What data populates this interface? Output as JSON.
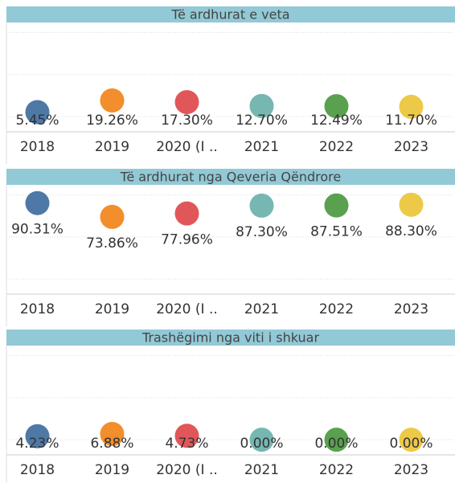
{
  "chart_data": [
    {
      "type": "dot",
      "title": "Të ardhurat e veta",
      "categories": [
        "2018",
        "2019",
        "2020 (I ..",
        "2021",
        "2022",
        "2023"
      ],
      "values": [
        5.45,
        19.26,
        17.3,
        12.7,
        12.49,
        11.7
      ],
      "value_labels": [
        "5.45%",
        "19.26%",
        "17.30%",
        "12.70%",
        "12.49%",
        "11.70%"
      ],
      "colors": [
        "#4e79a7",
        "#f28e2b",
        "#e15759",
        "#76b7b2",
        "#59a14f",
        "#edc948"
      ],
      "ylim": [
        -18,
        112
      ],
      "yticks": [
        0,
        50,
        100
      ],
      "grid": true
    },
    {
      "type": "dot",
      "title": "Të ardhurat nga Qeveria Qëndrore",
      "categories": [
        "2018",
        "2019",
        "2020 (I ..",
        "2021",
        "2022",
        "2023"
      ],
      "values": [
        90.31,
        73.86,
        77.96,
        87.3,
        87.51,
        88.3
      ],
      "value_labels": [
        "90.31%",
        "73.86%",
        "77.96%",
        "87.30%",
        "87.51%",
        "88.30%"
      ],
      "colors": [
        "#4e79a7",
        "#f28e2b",
        "#e15759",
        "#76b7b2",
        "#59a14f",
        "#edc948"
      ],
      "ylim": [
        -18,
        112
      ],
      "yticks": [
        0,
        50,
        100
      ],
      "grid": true
    },
    {
      "type": "dot",
      "title": "Trashëgimi nga viti i shkuar",
      "categories": [
        "2018",
        "2019",
        "2020 (I ..",
        "2021",
        "2022",
        "2023"
      ],
      "values": [
        4.23,
        6.88,
        4.73,
        0.0,
        0.0,
        0.0
      ],
      "value_labels": [
        "4.23%",
        "6.88%",
        "4.73%",
        "0.00%",
        "0.00%",
        "0.00%"
      ],
      "colors": [
        "#4e79a7",
        "#f28e2b",
        "#e15759",
        "#76b7b2",
        "#59a14f",
        "#edc948"
      ],
      "ylim": [
        -18,
        112
      ],
      "yticks": [
        0,
        50,
        100
      ],
      "grid": true
    }
  ]
}
